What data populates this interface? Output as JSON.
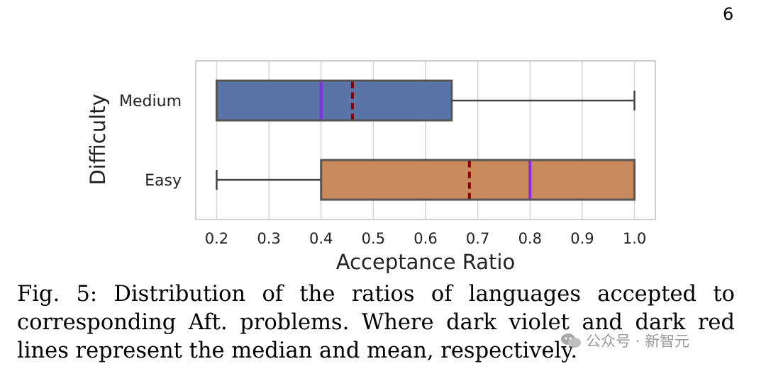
{
  "page_number": "6",
  "chart_data": {
    "type": "box",
    "orientation": "horizontal",
    "xlabel": "Acceptance Ratio",
    "ylabel": "Difficulty",
    "xlim": [
      0.16,
      1.04
    ],
    "xticks": [
      "0.2",
      "0.3",
      "0.4",
      "0.5",
      "0.6",
      "0.7",
      "0.8",
      "0.9",
      "1.0"
    ],
    "grid": true,
    "categories": [
      "Medium",
      "Easy"
    ],
    "boxes": [
      {
        "name": "Medium",
        "whisker_low": 0.2,
        "q1": 0.2,
        "median": 0.4,
        "mean": 0.46,
        "q3": 0.65,
        "whisker_high": 1.0,
        "color": "#5a74a8"
      },
      {
        "name": "Easy",
        "whisker_low": 0.2,
        "q1": 0.4,
        "median": 0.8,
        "mean": 0.684,
        "q3": 1.0,
        "whisker_high": 1.0,
        "color": "#c98a5e"
      }
    ],
    "median_color": "#8a2be2",
    "mean_color": "#8b0000"
  },
  "caption": {
    "lines": [
      "Fig. 5: Distribution of the ratios of languages accepted to",
      "corresponding Aft. problems. Where dark violet and dark red",
      "lines represent the median and mean, respectively."
    ]
  },
  "watermark": {
    "text": "公众号 · 新智元",
    "icon": "wechat-icon"
  }
}
